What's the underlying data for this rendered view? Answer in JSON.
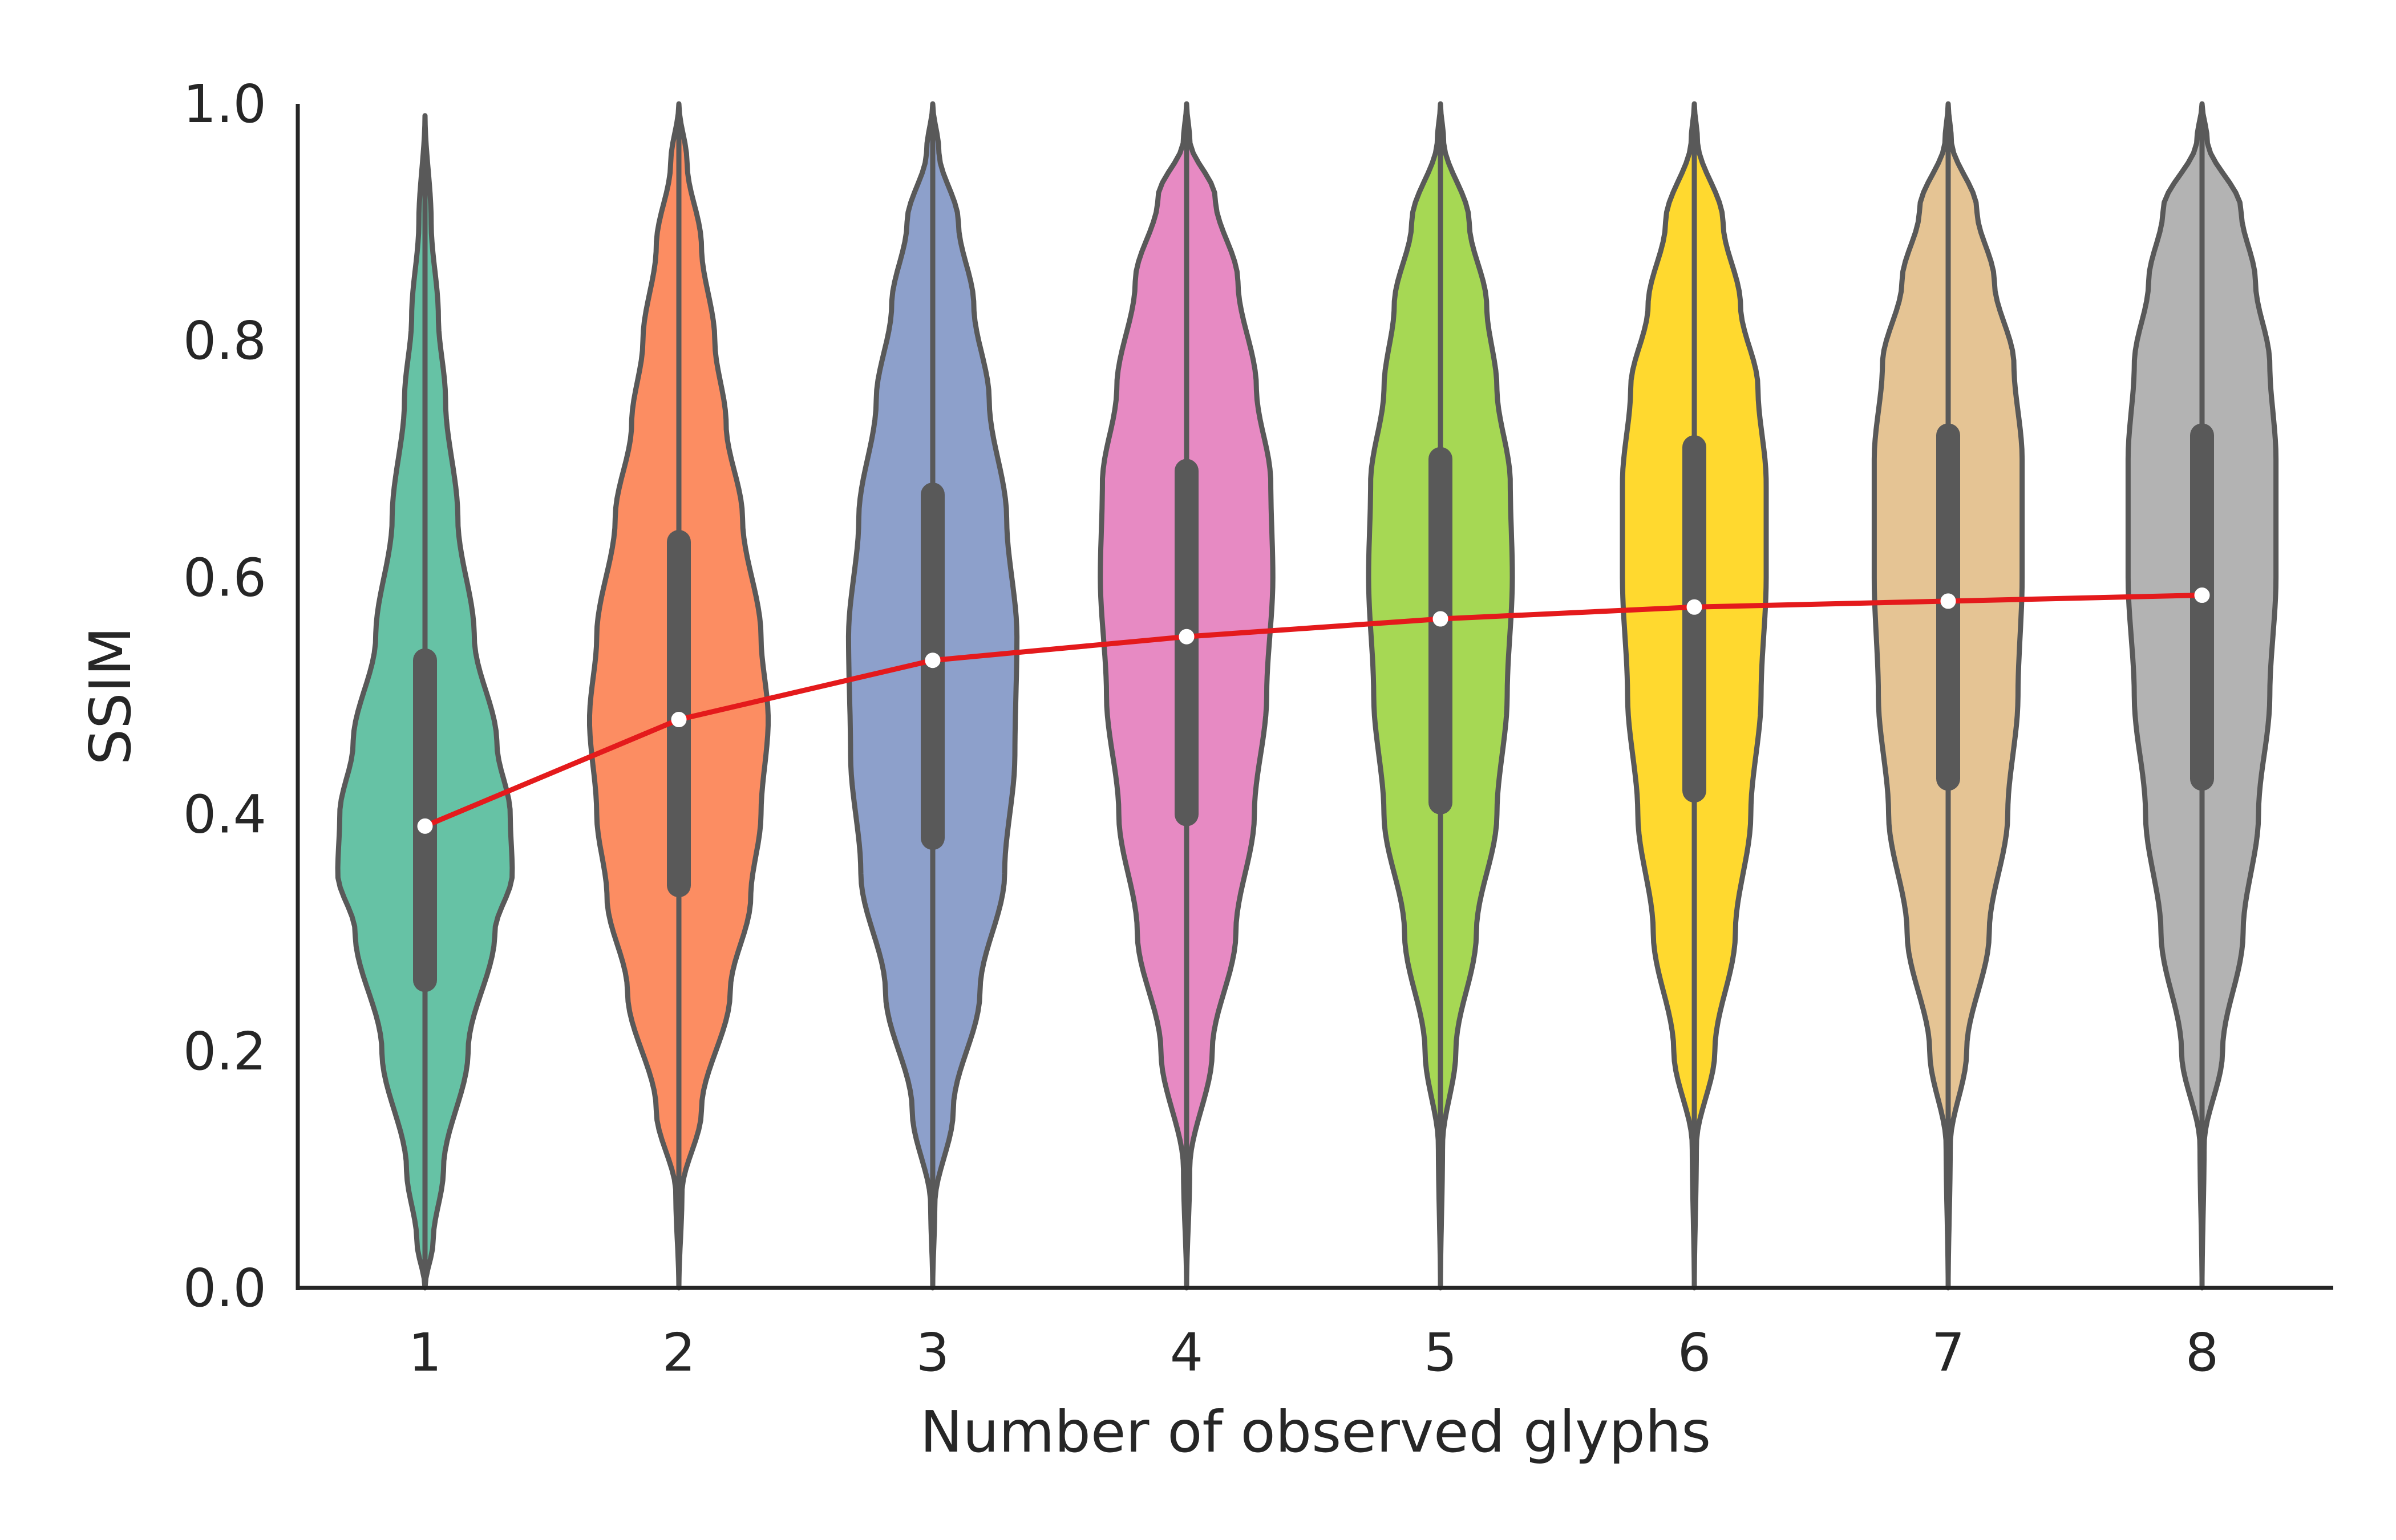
{
  "chart_data": {
    "type": "violin",
    "xlabel": "Number of observed glyphs",
    "ylabel": "SSIM",
    "ylim": [
      0.0,
      1.0
    ],
    "yticks": [
      "0.0",
      "0.2",
      "0.4",
      "0.6",
      "0.8",
      "1.0"
    ],
    "categories": [
      "1",
      "2",
      "3",
      "4",
      "5",
      "6",
      "7",
      "8"
    ],
    "colors": [
      "#66c2a5",
      "#fc8d62",
      "#8da0cb",
      "#e78ac3",
      "#a6d854",
      "#ffd92f",
      "#e5c494",
      "#b3b3b3"
    ],
    "line_color": "#e41a1c",
    "grid": false,
    "legend": "none",
    "series": [
      {
        "values": [
          0.39,
          0.48,
          0.53,
          0.55,
          0.565,
          0.575,
          0.58,
          0.585
        ]
      }
    ],
    "quartiles": [
      [
        0.26,
        0.53
      ],
      [
        0.34,
        0.63
      ],
      [
        0.38,
        0.67
      ],
      [
        0.4,
        0.69
      ],
      [
        0.41,
        0.7
      ],
      [
        0.42,
        0.71
      ],
      [
        0.43,
        0.72
      ],
      [
        0.43,
        0.72
      ]
    ],
    "ranges": [
      [
        0.0,
        0.99
      ],
      [
        0.0,
        1.0
      ],
      [
        0.0,
        1.0
      ],
      [
        0.0,
        1.0
      ],
      [
        0.0,
        1.0
      ],
      [
        0.0,
        1.0
      ],
      [
        0.0,
        1.0
      ],
      [
        0.0,
        1.0
      ]
    ]
  }
}
